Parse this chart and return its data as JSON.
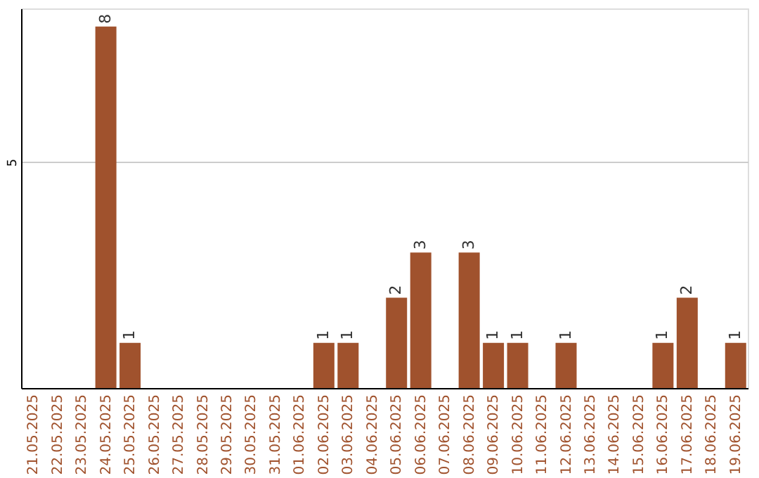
{
  "chart_data": {
    "type": "bar",
    "categories": [
      "21.05.2025",
      "22.05.2025",
      "23.05.2025",
      "24.05.2025",
      "25.05.2025",
      "26.05.2025",
      "27.05.2025",
      "28.05.2025",
      "29.05.2025",
      "30.05.2025",
      "31.05.2025",
      "01.06.2025",
      "02.06.2025",
      "03.06.2025",
      "04.06.2025",
      "05.06.2025",
      "06.06.2025",
      "07.06.2025",
      "08.06.2025",
      "09.06.2025",
      "10.06.2025",
      "11.06.2025",
      "12.06.2025",
      "13.06.2025",
      "14.06.2025",
      "15.06.2025",
      "16.06.2025",
      "17.06.2025",
      "18.06.2025",
      "19.06.2025"
    ],
    "values": [
      0,
      0,
      0,
      8,
      1,
      0,
      0,
      0,
      0,
      0,
      0,
      0,
      1,
      1,
      0,
      2,
      3,
      0,
      3,
      1,
      1,
      0,
      1,
      0,
      0,
      0,
      1,
      2,
      0,
      1
    ],
    "value_labels": [
      null,
      null,
      null,
      "8",
      "1",
      null,
      null,
      null,
      null,
      null,
      null,
      null,
      "1",
      "1",
      null,
      "2",
      "3",
      null,
      "3",
      "1",
      "1",
      null,
      "1",
      null,
      null,
      null,
      "1",
      "2",
      null,
      "1"
    ],
    "color": "#a0522d",
    "ylim": [
      0,
      8.4
    ],
    "yticks": [
      5
    ],
    "grid": "y"
  }
}
